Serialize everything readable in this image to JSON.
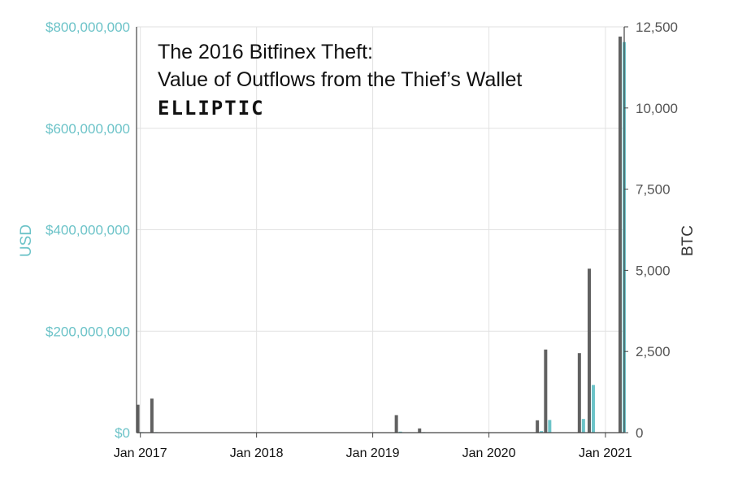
{
  "chart_data": {
    "type": "bar",
    "title_line1": "The 2016 Bitfinex Theft:",
    "title_line2": "Value of Outflows from the Thief’s Wallet",
    "brand": "ELLIPTIC",
    "y_left_label": "USD",
    "y_right_label": "BTC",
    "y_left_ticks": [
      "$0",
      "$200,000,000",
      "$400,000,000",
      "$600,000,000",
      "$800,000,000"
    ],
    "y_right_ticks": [
      "0",
      "2,500",
      "5,000",
      "7,500",
      "10,000",
      "12,500"
    ],
    "y_left_range": [
      0,
      800000000
    ],
    "y_right_range": [
      0,
      12500
    ],
    "x_range": [
      "2016-12-20",
      "2021-03-01"
    ],
    "x_ticks": [
      {
        "date": "2017-01-01",
        "label": "Jan 2017"
      },
      {
        "date": "2018-01-01",
        "label": "Jan 2018"
      },
      {
        "date": "2019-01-01",
        "label": "Jan 2019"
      },
      {
        "date": "2020-01-01",
        "label": "Jan 2020"
      },
      {
        "date": "2021-01-01",
        "label": "Jan 2021"
      }
    ],
    "grid": "horizontal",
    "series": [
      {
        "unit": "BTC",
        "axis": "right",
        "color": "#616161",
        "points": [
          {
            "date": "2016-12-28",
            "value": 860
          },
          {
            "date": "2017-02-10",
            "value": 1050
          },
          {
            "date": "2019-03-20",
            "value": 540
          },
          {
            "date": "2019-06-01",
            "value": 130
          },
          {
            "date": "2019-07-10",
            "value": 10
          },
          {
            "date": "2020-06-05",
            "value": 380
          },
          {
            "date": "2020-07-01",
            "value": 2560
          },
          {
            "date": "2020-10-15",
            "value": 2450
          },
          {
            "date": "2020-11-15",
            "value": 5050
          },
          {
            "date": "2021-02-20",
            "value": 12200
          }
        ]
      },
      {
        "unit": "USD",
        "axis": "left",
        "color": "#6cc3c8",
        "points": [
          {
            "date": "2016-12-28",
            "value": 1000000
          },
          {
            "date": "2017-02-10",
            "value": 1000000
          },
          {
            "date": "2019-03-20",
            "value": 2000000
          },
          {
            "date": "2019-06-01",
            "value": 1000000
          },
          {
            "date": "2020-06-05",
            "value": 3000000
          },
          {
            "date": "2020-07-01",
            "value": 25000000
          },
          {
            "date": "2020-10-15",
            "value": 27000000
          },
          {
            "date": "2020-11-15",
            "value": 94000000
          },
          {
            "date": "2021-02-20",
            "value": 770000000
          }
        ]
      }
    ]
  }
}
